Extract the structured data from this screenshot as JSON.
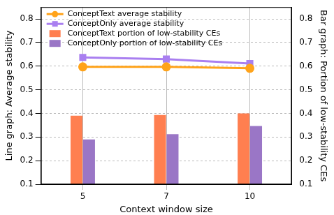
{
  "chart_data": {
    "type": "bar",
    "categories": [
      "5",
      "7",
      "10"
    ],
    "xlabel": "Context window size",
    "ylabel": "Line graph: Average stability",
    "y2label": "Bar graph: Portion of low-stability CEs",
    "ylim": [
      0.1,
      0.85
    ],
    "yticks": [
      0.1,
      0.2,
      0.3,
      0.4,
      0.5,
      0.6,
      0.7,
      0.8
    ],
    "y2lim": [
      0.1,
      0.85
    ],
    "y2ticks": [
      0.1,
      0.2,
      0.3,
      0.4,
      0.5,
      0.6,
      0.7,
      0.8
    ],
    "grid": true,
    "legend": "upper left",
    "series": [
      {
        "name": "ConceptText average stability",
        "type": "line",
        "marker": "circle",
        "color": "#ffa31a",
        "values": [
          0.597,
          0.597,
          0.591
        ]
      },
      {
        "name": "ConceptOnly average stability",
        "type": "line",
        "marker": "square",
        "color": "#a97ff0",
        "values": [
          0.637,
          0.63,
          0.611
        ]
      },
      {
        "name": "ConceptText portion of low-stability CEs",
        "type": "bar",
        "axis": "y2",
        "color": "#ff7f50",
        "values": [
          0.39,
          0.393,
          0.4
        ]
      },
      {
        "name": "ConceptOnly portion of low-stability CEs",
        "type": "bar",
        "axis": "y2",
        "color": "#9a76c6",
        "values": [
          0.29,
          0.312,
          0.347
        ]
      }
    ]
  }
}
